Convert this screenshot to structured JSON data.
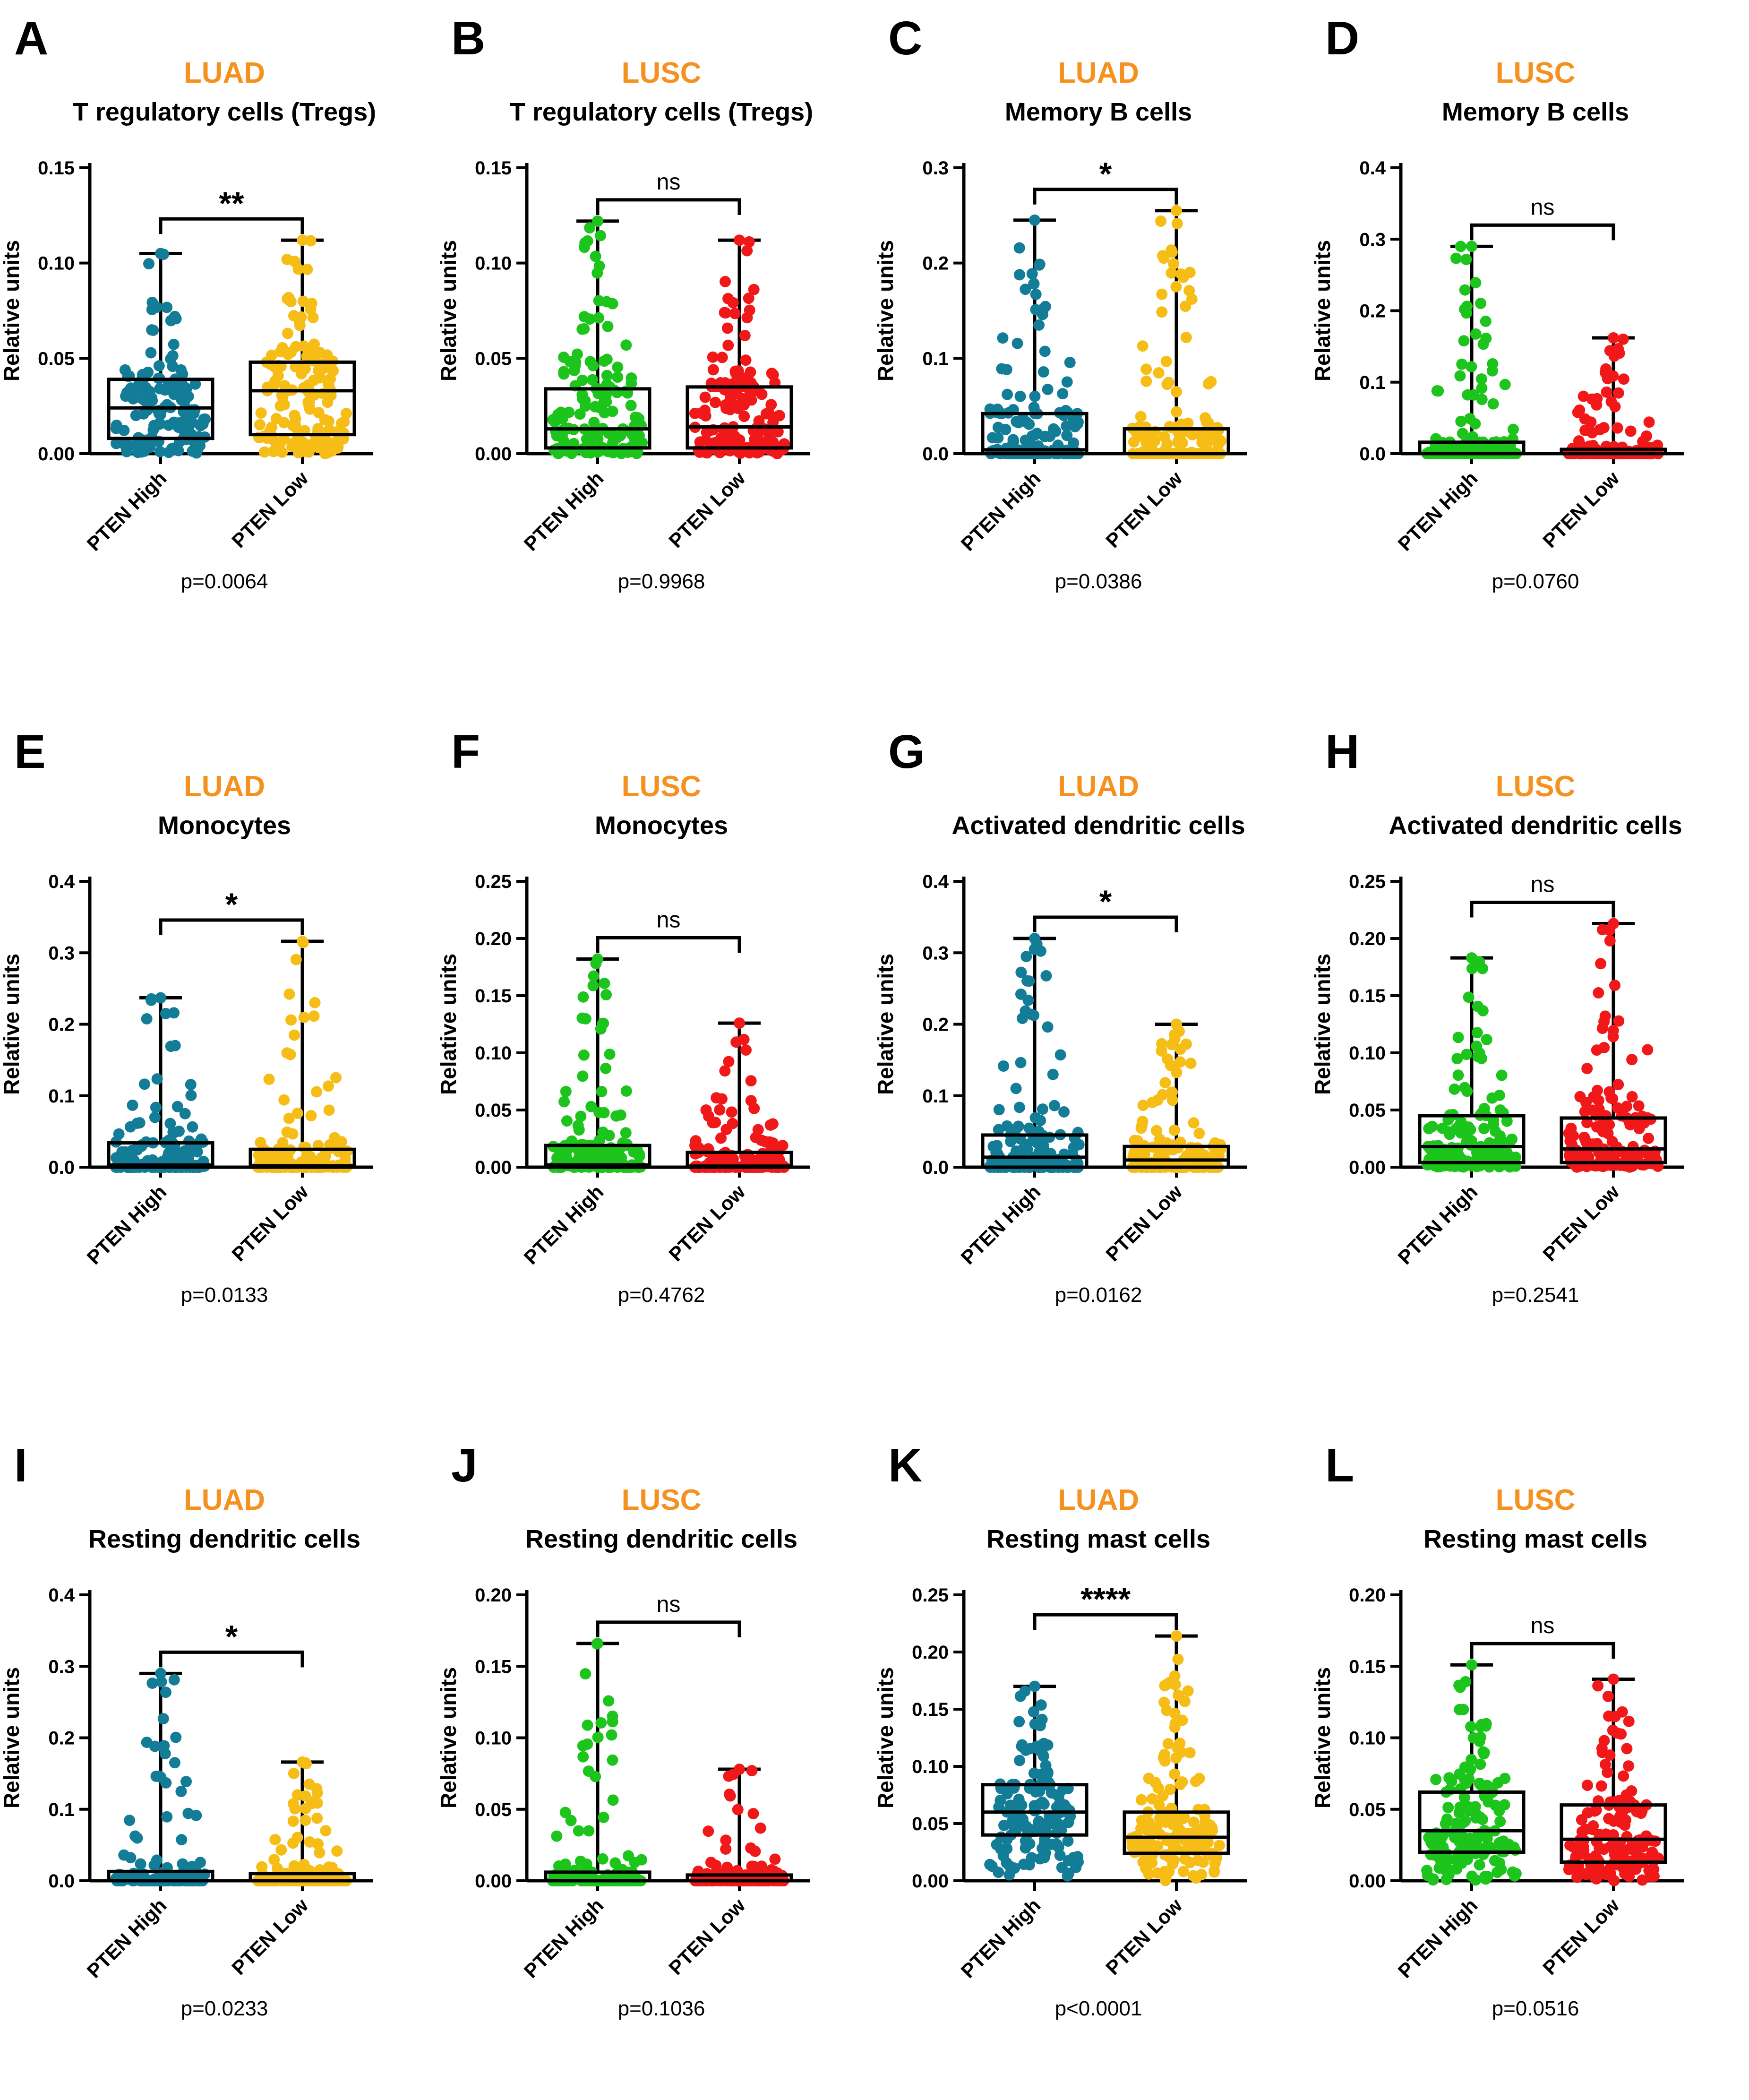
{
  "figure": {
    "colors": {
      "LUAD_high": "#137c97",
      "LUAD_low": "#f5bd16",
      "LUSC_high": "#1cc41c",
      "LUSC_low": "#f01818",
      "cohort_title": "#f5911f",
      "frame": "#000000"
    },
    "panels": [
      {
        "letter": "A",
        "cohort": "LUAD",
        "title": "T regulatory cells (Tregs)",
        "ylabel": "Relative units",
        "yticks": [
          "0.00",
          "0.05",
          "0.10",
          "0.15"
        ],
        "sig": "**",
        "pvalue": "p=0.0064",
        "groups": [
          "PTEN High",
          "PTEN Low"
        ]
      },
      {
        "letter": "B",
        "cohort": "LUSC",
        "title": "T regulatory cells (Tregs)",
        "ylabel": "Relative units",
        "yticks": [
          "0.00",
          "0.05",
          "0.10",
          "0.15"
        ],
        "sig": "ns",
        "pvalue": "p=0.9968",
        "groups": [
          "PTEN High",
          "PTEN Low"
        ]
      },
      {
        "letter": "C",
        "cohort": "LUAD",
        "title": "Memory B cells",
        "ylabel": "Relative units",
        "yticks": [
          "0.0",
          "0.1",
          "0.2",
          "0.3"
        ],
        "sig": "*",
        "pvalue": "p=0.0386",
        "groups": [
          "PTEN High",
          "PTEN Low"
        ]
      },
      {
        "letter": "D",
        "cohort": "LUSC",
        "title": "Memory B cells",
        "ylabel": "Relative units",
        "yticks": [
          "0.0",
          "0.1",
          "0.2",
          "0.3",
          "0.4"
        ],
        "sig": "ns",
        "pvalue": "p=0.0760",
        "groups": [
          "PTEN High",
          "PTEN Low"
        ]
      },
      {
        "letter": "E",
        "cohort": "LUAD",
        "title": "Monocytes",
        "ylabel": "Relative units",
        "yticks": [
          "0.0",
          "0.1",
          "0.2",
          "0.3",
          "0.4"
        ],
        "sig": "*",
        "pvalue": "p=0.0133",
        "groups": [
          "PTEN High",
          "PTEN Low"
        ]
      },
      {
        "letter": "F",
        "cohort": "LUSC",
        "title": "Monocytes",
        "ylabel": "Relative units",
        "yticks": [
          "0.00",
          "0.05",
          "0.10",
          "0.15",
          "0.20",
          "0.25"
        ],
        "sig": "ns",
        "pvalue": "p=0.4762",
        "groups": [
          "PTEN High",
          "PTEN Low"
        ]
      },
      {
        "letter": "G",
        "cohort": "LUAD",
        "title": "Activated dendritic cells",
        "ylabel": "Relative units",
        "yticks": [
          "0.0",
          "0.1",
          "0.2",
          "0.3",
          "0.4"
        ],
        "sig": "*",
        "pvalue": "p=0.0162",
        "groups": [
          "PTEN High",
          "PTEN Low"
        ]
      },
      {
        "letter": "H",
        "cohort": "LUSC",
        "title": "Activated dendritic cells",
        "ylabel": "Relative units",
        "yticks": [
          "0.00",
          "0.05",
          "0.10",
          "0.15",
          "0.20",
          "0.25"
        ],
        "sig": "ns",
        "pvalue": "p=0.2541",
        "groups": [
          "PTEN High",
          "PTEN Low"
        ]
      },
      {
        "letter": "I",
        "cohort": "LUAD",
        "title": "Resting dendritic cells",
        "ylabel": "Relative units",
        "yticks": [
          "0.0",
          "0.1",
          "0.2",
          "0.3",
          "0.4"
        ],
        "sig": "*",
        "pvalue": "p=0.0233",
        "groups": [
          "PTEN High",
          "PTEN Low"
        ]
      },
      {
        "letter": "J",
        "cohort": "LUSC",
        "title": "Resting dendritic cells",
        "ylabel": "Relative units",
        "yticks": [
          "0.00",
          "0.05",
          "0.10",
          "0.15",
          "0.20"
        ],
        "sig": "ns",
        "pvalue": "p=0.1036",
        "groups": [
          "PTEN High",
          "PTEN Low"
        ]
      },
      {
        "letter": "K",
        "cohort": "LUAD",
        "title": "Resting mast cells",
        "ylabel": "Relative units",
        "yticks": [
          "0.00",
          "0.05",
          "0.10",
          "0.15",
          "0.20",
          "0.25"
        ],
        "sig": "****",
        "pvalue": "p<0.0001",
        "groups": [
          "PTEN High",
          "PTEN Low"
        ]
      },
      {
        "letter": "L",
        "cohort": "LUSC",
        "title": "Resting mast cells",
        "ylabel": "Relative units",
        "yticks": [
          "0.00",
          "0.05",
          "0.10",
          "0.15",
          "0.20"
        ],
        "sig": "ns",
        "pvalue": "p=0.0516",
        "groups": [
          "PTEN High",
          "PTEN Low"
        ]
      }
    ]
  },
  "chart_data": [
    {
      "panel": "A",
      "type": "scatter",
      "subtype": "box-and-dot",
      "title": "T regulatory cells (Tregs)",
      "cohort": "LUAD",
      "xlabel": "",
      "ylabel": "Relative units",
      "ylim": [
        0,
        0.15
      ],
      "categories": [
        "PTEN High",
        "PTEN Low"
      ],
      "series": [
        {
          "name": "PTEN High",
          "min": 0,
          "q1": 0.008,
          "median": 0.024,
          "q3": 0.039,
          "max": 0.105
        },
        {
          "name": "PTEN Low",
          "min": 0,
          "q1": 0.01,
          "median": 0.033,
          "q3": 0.048,
          "max": 0.112
        }
      ],
      "pvalue": "p=0.0064",
      "significance": "**"
    },
    {
      "panel": "B",
      "type": "scatter",
      "subtype": "box-and-dot",
      "title": "T regulatory cells (Tregs)",
      "cohort": "LUSC",
      "xlabel": "",
      "ylabel": "Relative units",
      "ylim": [
        0,
        0.15
      ],
      "categories": [
        "PTEN High",
        "PTEN Low"
      ],
      "series": [
        {
          "name": "PTEN High",
          "min": 0,
          "q1": 0.003,
          "median": 0.013,
          "q3": 0.034,
          "max": 0.122
        },
        {
          "name": "PTEN Low",
          "min": 0,
          "q1": 0.003,
          "median": 0.014,
          "q3": 0.035,
          "max": 0.112
        }
      ],
      "pvalue": "p=0.9968",
      "significance": "ns"
    },
    {
      "panel": "C",
      "type": "scatter",
      "subtype": "box-and-dot",
      "title": "Memory B cells",
      "cohort": "LUAD",
      "xlabel": "",
      "ylabel": "Relative units",
      "ylim": [
        0,
        0.3
      ],
      "categories": [
        "PTEN High",
        "PTEN Low"
      ],
      "series": [
        {
          "name": "PTEN High",
          "min": 0,
          "q1": 0,
          "median": 0.004,
          "q3": 0.042,
          "max": 0.245
        },
        {
          "name": "PTEN Low",
          "min": 0,
          "q1": 0,
          "median": 0,
          "q3": 0.026,
          "max": 0.255
        }
      ],
      "pvalue": "p=0.0386",
      "significance": "*"
    },
    {
      "panel": "D",
      "type": "scatter",
      "subtype": "box-and-dot",
      "title": "Memory B cells",
      "cohort": "LUSC",
      "xlabel": "",
      "ylabel": "Relative units",
      "ylim": [
        0,
        0.4
      ],
      "categories": [
        "PTEN High",
        "PTEN Low"
      ],
      "series": [
        {
          "name": "PTEN High",
          "min": 0,
          "q1": 0,
          "median": 0,
          "q3": 0.016,
          "max": 0.29
        },
        {
          "name": "PTEN Low",
          "min": 0,
          "q1": 0,
          "median": 0,
          "q3": 0.006,
          "max": 0.162
        }
      ],
      "pvalue": "p=0.0760",
      "significance": "ns"
    },
    {
      "panel": "E",
      "type": "scatter",
      "subtype": "box-and-dot",
      "title": "Monocytes",
      "cohort": "LUAD",
      "xlabel": "",
      "ylabel": "Relative units",
      "ylim": [
        0,
        0.4
      ],
      "categories": [
        "PTEN High",
        "PTEN Low"
      ],
      "series": [
        {
          "name": "PTEN High",
          "min": 0,
          "q1": 0,
          "median": 0.003,
          "q3": 0.034,
          "max": 0.237
        },
        {
          "name": "PTEN Low",
          "min": 0,
          "q1": 0,
          "median": 0.002,
          "q3": 0.025,
          "max": 0.316
        }
      ],
      "pvalue": "p=0.0133",
      "significance": "*"
    },
    {
      "panel": "F",
      "type": "scatter",
      "subtype": "box-and-dot",
      "title": "Monocytes",
      "cohort": "LUSC",
      "xlabel": "",
      "ylabel": "Relative units",
      "ylim": [
        0,
        0.25
      ],
      "categories": [
        "PTEN High",
        "PTEN Low"
      ],
      "series": [
        {
          "name": "PTEN High",
          "min": 0,
          "q1": 0,
          "median": 0.002,
          "q3": 0.019,
          "max": 0.182
        },
        {
          "name": "PTEN Low",
          "min": 0,
          "q1": 0,
          "median": 0.001,
          "q3": 0.013,
          "max": 0.126
        }
      ],
      "pvalue": "p=0.4762",
      "significance": "ns"
    },
    {
      "panel": "G",
      "type": "scatter",
      "subtype": "box-and-dot",
      "title": "Activated dendritic cells",
      "cohort": "LUAD",
      "xlabel": "",
      "ylabel": "Relative units",
      "ylim": [
        0,
        0.4
      ],
      "categories": [
        "PTEN High",
        "PTEN Low"
      ],
      "series": [
        {
          "name": "PTEN High",
          "min": 0,
          "q1": 0,
          "median": 0.014,
          "q3": 0.045,
          "max": 0.32
        },
        {
          "name": "PTEN Low",
          "min": 0,
          "q1": 0,
          "median": 0.01,
          "q3": 0.029,
          "max": 0.2
        }
      ],
      "pvalue": "p=0.0162",
      "significance": "*"
    },
    {
      "panel": "H",
      "type": "scatter",
      "subtype": "box-and-dot",
      "title": "Activated dendritic cells",
      "cohort": "LUSC",
      "xlabel": "",
      "ylabel": "Relative units",
      "ylim": [
        0,
        0.25
      ],
      "categories": [
        "PTEN High",
        "PTEN Low"
      ],
      "series": [
        {
          "name": "PTEN High",
          "min": 0,
          "q1": 0.004,
          "median": 0.018,
          "q3": 0.045,
          "max": 0.183
        },
        {
          "name": "PTEN Low",
          "min": 0,
          "q1": 0.004,
          "median": 0.016,
          "q3": 0.043,
          "max": 0.213
        }
      ],
      "pvalue": "p=0.2541",
      "significance": "ns"
    },
    {
      "panel": "I",
      "type": "scatter",
      "subtype": "box-and-dot",
      "title": "Resting dendritic cells",
      "cohort": "LUAD",
      "xlabel": "",
      "ylabel": "Relative units",
      "ylim": [
        0,
        0.4
      ],
      "categories": [
        "PTEN High",
        "PTEN Low"
      ],
      "series": [
        {
          "name": "PTEN High",
          "min": 0,
          "q1": 0,
          "median": 0,
          "q3": 0.013,
          "max": 0.29
        },
        {
          "name": "PTEN Low",
          "min": 0,
          "q1": 0,
          "median": 0,
          "q3": 0.01,
          "max": 0.166
        }
      ],
      "pvalue": "p=0.0233",
      "significance": "*"
    },
    {
      "panel": "J",
      "type": "scatter",
      "subtype": "box-and-dot",
      "title": "Resting dendritic cells",
      "cohort": "LUSC",
      "xlabel": "",
      "ylabel": "Relative units",
      "ylim": [
        0,
        0.2
      ],
      "categories": [
        "PTEN High",
        "PTEN Low"
      ],
      "series": [
        {
          "name": "PTEN High",
          "min": 0,
          "q1": 0,
          "median": 0,
          "q3": 0.006,
          "max": 0.166
        },
        {
          "name": "PTEN Low",
          "min": 0,
          "q1": 0,
          "median": 0,
          "q3": 0.004,
          "max": 0.078
        }
      ],
      "pvalue": "p=0.1036",
      "significance": "ns"
    },
    {
      "panel": "K",
      "type": "scatter",
      "subtype": "box-and-dot",
      "title": "Resting mast cells",
      "cohort": "LUAD",
      "xlabel": "",
      "ylabel": "Relative units",
      "ylim": [
        0,
        0.25
      ],
      "categories": [
        "PTEN High",
        "PTEN Low"
      ],
      "series": [
        {
          "name": "PTEN High",
          "min": 0,
          "q1": 0.04,
          "median": 0.06,
          "q3": 0.084,
          "max": 0.17
        },
        {
          "name": "PTEN Low",
          "min": 0,
          "q1": 0.024,
          "median": 0.038,
          "q3": 0.06,
          "max": 0.214
        }
      ],
      "pvalue": "p<0.0001",
      "significance": "****"
    },
    {
      "panel": "L",
      "type": "scatter",
      "subtype": "box-and-dot",
      "title": "Resting mast cells",
      "cohort": "LUSC",
      "xlabel": "",
      "ylabel": "Relative units",
      "ylim": [
        0,
        0.2
      ],
      "categories": [
        "PTEN High",
        "PTEN Low"
      ],
      "series": [
        {
          "name": "PTEN High",
          "min": 0,
          "q1": 0.02,
          "median": 0.035,
          "q3": 0.062,
          "max": 0.151
        },
        {
          "name": "PTEN Low",
          "min": 0,
          "q1": 0.013,
          "median": 0.029,
          "q3": 0.053,
          "max": 0.141
        }
      ],
      "pvalue": "p=0.0516",
      "significance": "ns"
    }
  ]
}
